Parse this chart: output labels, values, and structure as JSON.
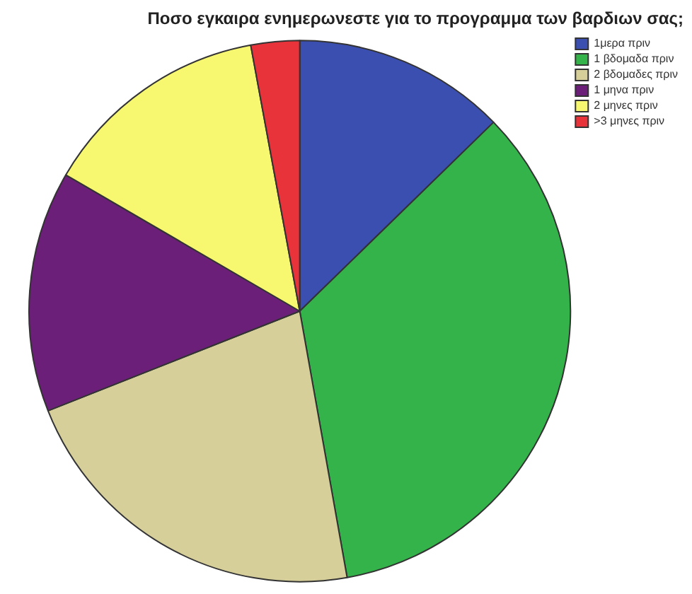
{
  "chart_data": {
    "type": "pie",
    "title": "Ποσο εγκαιρα ενημερωνεστε για το προγραμμα των βαρδιων σας;",
    "categories": [
      "1μερα πριν",
      "1 βδομαδα πριν",
      "2 βδομαδες πριν",
      "1 μηνα πριν",
      "2 μηνες πριν",
      ">3 μηνες πριν"
    ],
    "values": [
      12.7,
      34.5,
      21.8,
      14.4,
      13.7,
      2.9
    ],
    "colors": [
      "#3a4fb0",
      "#33b34a",
      "#d6cf9a",
      "#6b1f78",
      "#f8f870",
      "#e8333a"
    ],
    "legend": "top right"
  }
}
